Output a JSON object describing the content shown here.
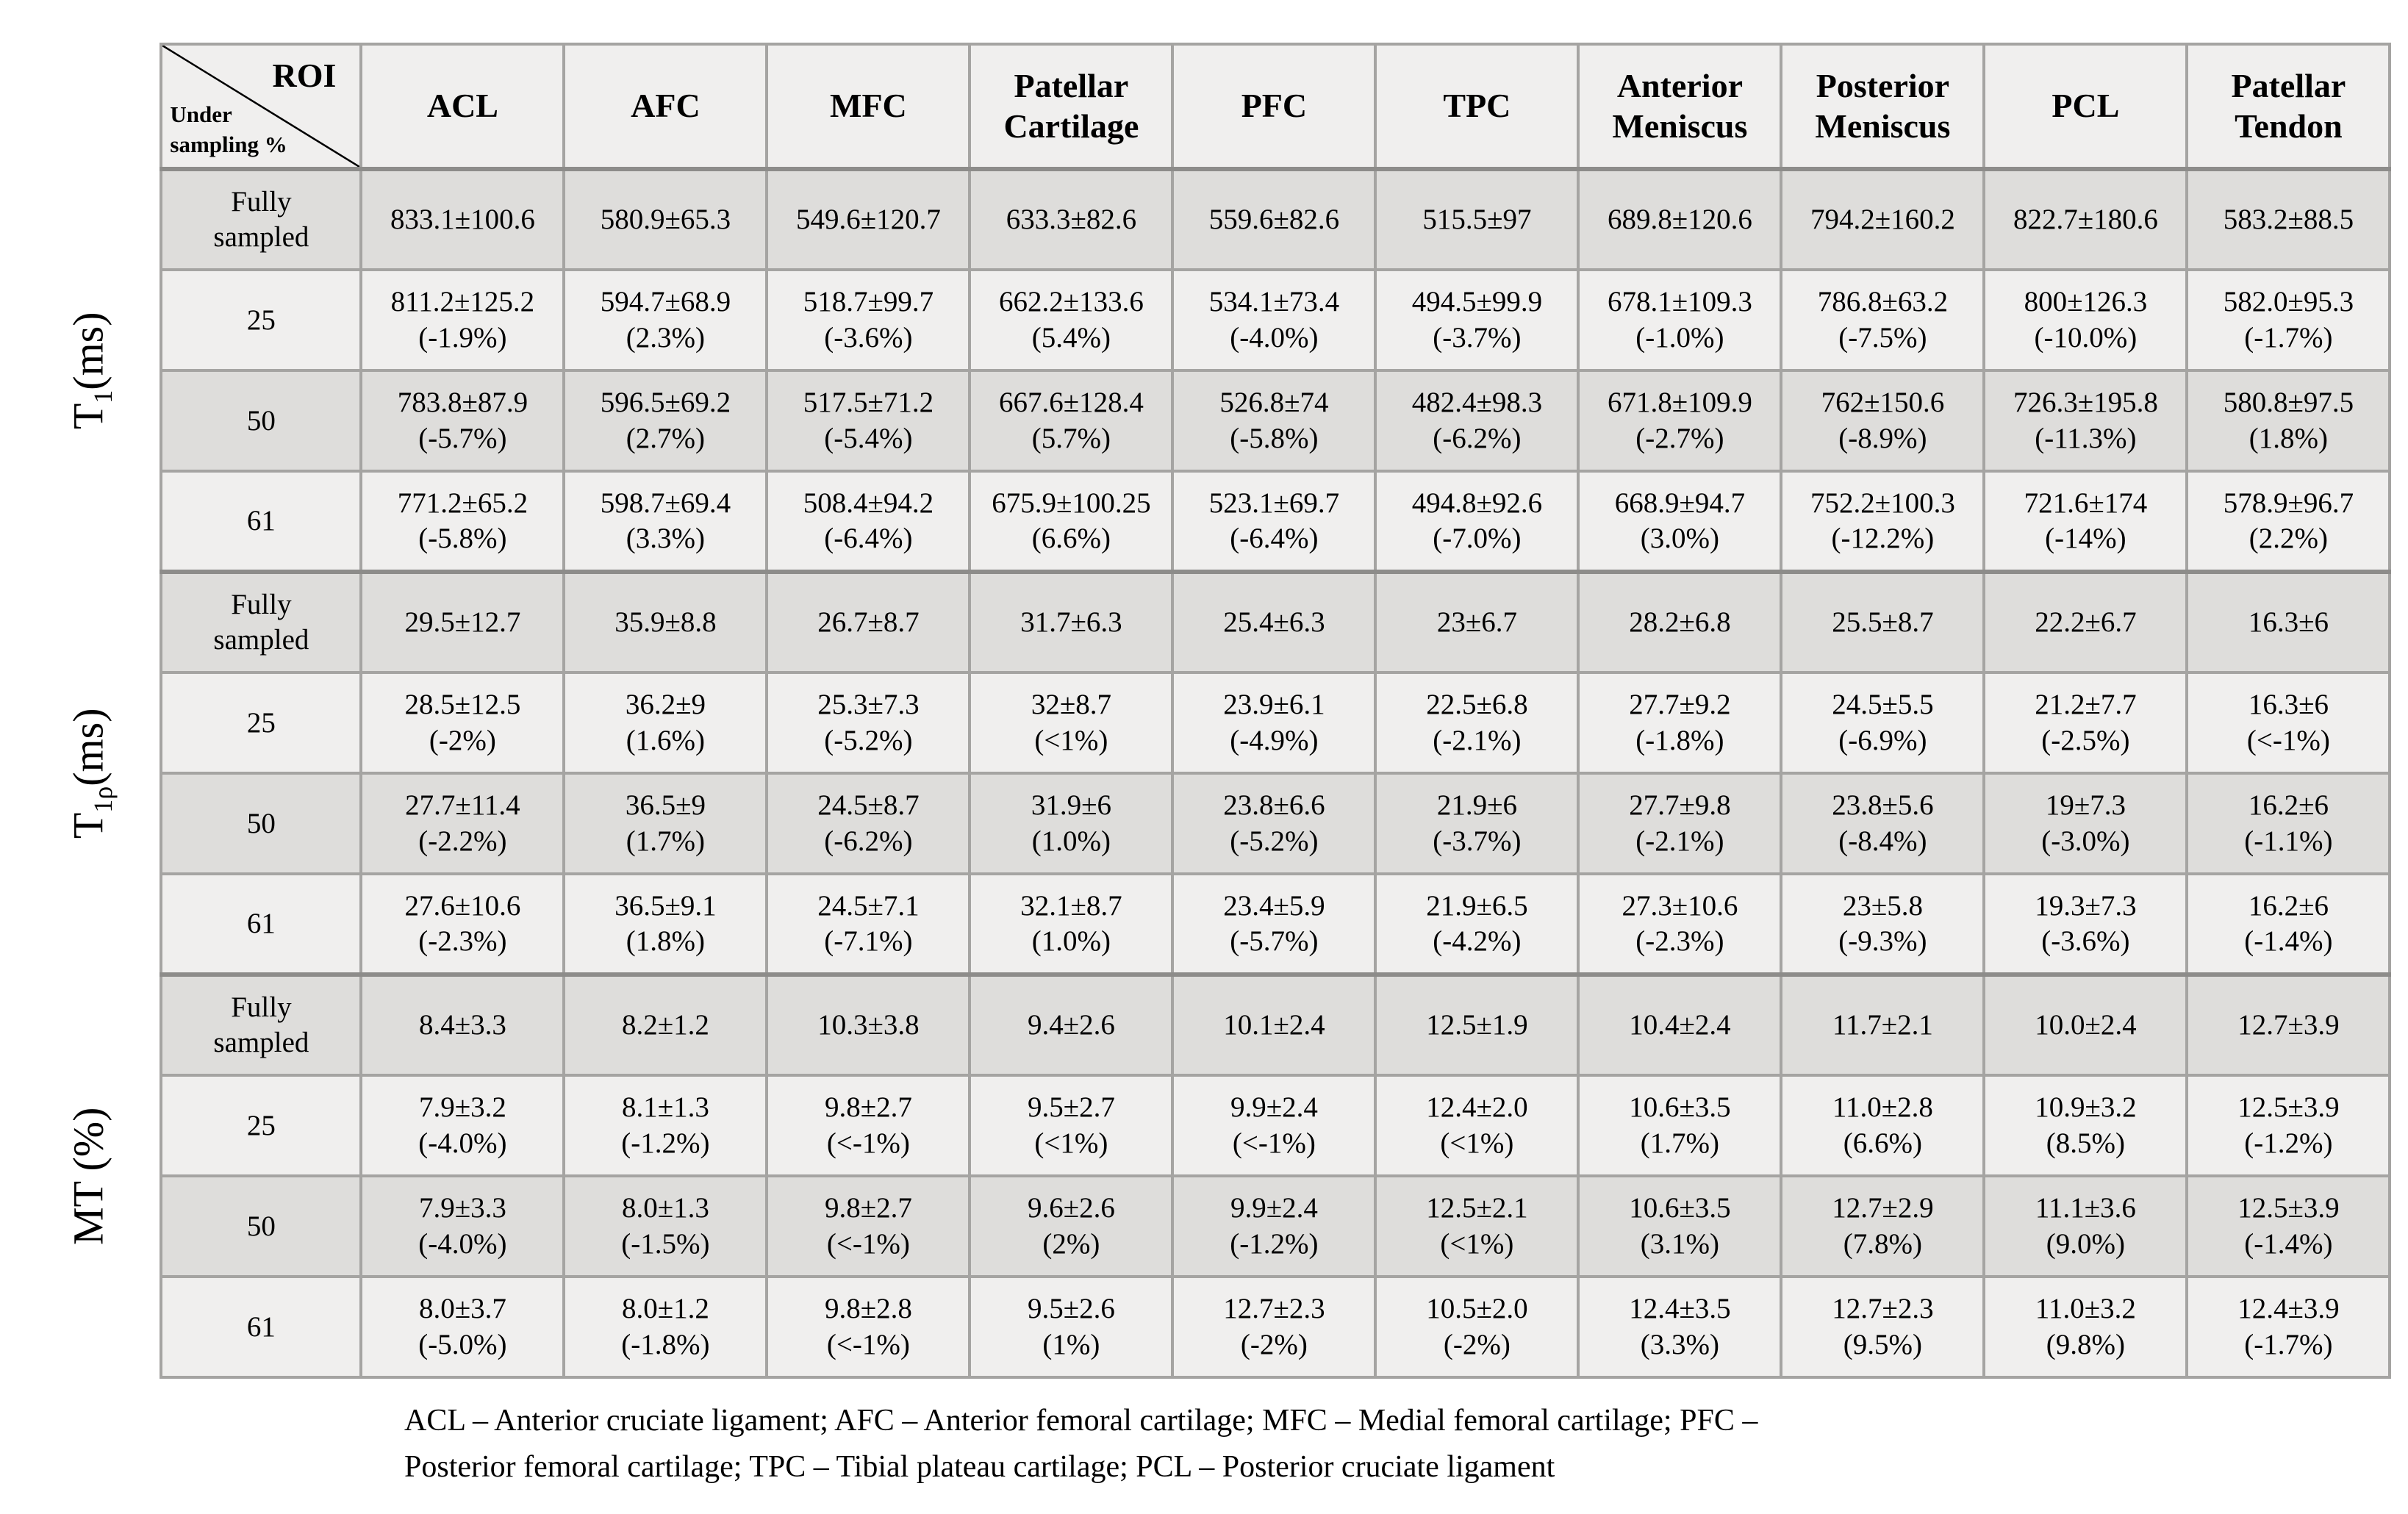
{
  "table": {
    "corner": {
      "roi": "ROI",
      "under_line1": "Under",
      "under_line2": "sampling %"
    },
    "columns": [
      "ACL",
      "AFC",
      "MFC",
      "Patellar Cartilage",
      "PFC",
      "TPC",
      "Anterior Meniscus",
      "Posterior Meniscus",
      "PCL",
      "Patellar Tendon"
    ],
    "groups": [
      {
        "label": {
          "pre": "T",
          "sub": "1",
          "post": "(ms)"
        },
        "rows": [
          {
            "label": "Fully sampled",
            "cells": [
              [
                "833.1±100.6"
              ],
              [
                "580.9±65.3"
              ],
              [
                "549.6±120.7"
              ],
              [
                "633.3±82.6"
              ],
              [
                "559.6±82.6"
              ],
              [
                "515.5±97"
              ],
              [
                "689.8±120.6"
              ],
              [
                "794.2±160.2"
              ],
              [
                "822.7±180.6"
              ],
              [
                "583.2±88.5"
              ]
            ]
          },
          {
            "label": "25",
            "cells": [
              [
                "811.2±125.2",
                "(-1.9%)"
              ],
              [
                "594.7±68.9",
                "(2.3%)"
              ],
              [
                "518.7±99.7",
                "(-3.6%)"
              ],
              [
                "662.2±133.6",
                "(5.4%)"
              ],
              [
                "534.1±73.4",
                "(-4.0%)"
              ],
              [
                "494.5±99.9",
                "(-3.7%)"
              ],
              [
                "678.1±109.3",
                "(-1.0%)"
              ],
              [
                "786.8±63.2",
                "(-7.5%)"
              ],
              [
                "800±126.3",
                "(-10.0%)"
              ],
              [
                "582.0±95.3",
                "(-1.7%)"
              ]
            ]
          },
          {
            "label": "50",
            "cells": [
              [
                "783.8±87.9",
                "(-5.7%)"
              ],
              [
                "596.5±69.2",
                "(2.7%)"
              ],
              [
                "517.5±71.2",
                "(-5.4%)"
              ],
              [
                "667.6±128.4",
                "(5.7%)"
              ],
              [
                "526.8±74",
                "(-5.8%)"
              ],
              [
                "482.4±98.3",
                "(-6.2%)"
              ],
              [
                "671.8±109.9",
                "(-2.7%)"
              ],
              [
                "762±150.6",
                "(-8.9%)"
              ],
              [
                "726.3±195.8",
                "(-11.3%)"
              ],
              [
                "580.8±97.5",
                "(1.8%)"
              ]
            ]
          },
          {
            "label": "61",
            "cells": [
              [
                "771.2±65.2",
                "(-5.8%)"
              ],
              [
                "598.7±69.4",
                "(3.3%)"
              ],
              [
                "508.4±94.2",
                "(-6.4%)"
              ],
              [
                "675.9±100.25",
                "(6.6%)"
              ],
              [
                "523.1±69.7",
                "(-6.4%)"
              ],
              [
                "494.8±92.6",
                "(-7.0%)"
              ],
              [
                "668.9±94.7",
                "(3.0%)"
              ],
              [
                "752.2±100.3",
                "(-12.2%)"
              ],
              [
                "721.6±174",
                "(-14%)"
              ],
              [
                "578.9±96.7",
                "(2.2%)"
              ]
            ]
          }
        ]
      },
      {
        "label": {
          "pre": "T",
          "sub": "1ρ",
          "post": "(ms)"
        },
        "rows": [
          {
            "label": "Fully sampled",
            "cells": [
              [
                "29.5±12.7"
              ],
              [
                "35.9±8.8"
              ],
              [
                "26.7±8.7"
              ],
              [
                "31.7±6.3"
              ],
              [
                "25.4±6.3"
              ],
              [
                "23±6.7"
              ],
              [
                "28.2±6.8"
              ],
              [
                "25.5±8.7"
              ],
              [
                "22.2±6.7"
              ],
              [
                "16.3±6"
              ]
            ]
          },
          {
            "label": "25",
            "cells": [
              [
                "28.5±12.5",
                "(-2%)"
              ],
              [
                "36.2±9",
                "(1.6%)"
              ],
              [
                "25.3±7.3",
                "(-5.2%)"
              ],
              [
                "32±8.7",
                "(<1%)"
              ],
              [
                "23.9±6.1",
                "(-4.9%)"
              ],
              [
                "22.5±6.8",
                "(-2.1%)"
              ],
              [
                "27.7±9.2",
                "(-1.8%)"
              ],
              [
                "24.5±5.5",
                "(-6.9%)"
              ],
              [
                "21.2±7.7",
                "(-2.5%)"
              ],
              [
                "16.3±6",
                "(<-1%)"
              ]
            ]
          },
          {
            "label": "50",
            "cells": [
              [
                "27.7±11.4",
                "(-2.2%)"
              ],
              [
                "36.5±9",
                "(1.7%)"
              ],
              [
                "24.5±8.7",
                "(-6.2%)"
              ],
              [
                "31.9±6",
                "(1.0%)"
              ],
              [
                "23.8±6.6",
                "(-5.2%)"
              ],
              [
                "21.9±6",
                "(-3.7%)"
              ],
              [
                "27.7±9.8",
                "(-2.1%)"
              ],
              [
                "23.8±5.6",
                "(-8.4%)"
              ],
              [
                "19±7.3",
                "(-3.0%)"
              ],
              [
                "16.2±6",
                "(-1.1%)"
              ]
            ]
          },
          {
            "label": "61",
            "cells": [
              [
                "27.6±10.6",
                "(-2.3%)"
              ],
              [
                "36.5±9.1",
                "(1.8%)"
              ],
              [
                "24.5±7.1",
                "(-7.1%)"
              ],
              [
                "32.1±8.7",
                "(1.0%)"
              ],
              [
                "23.4±5.9",
                "(-5.7%)"
              ],
              [
                "21.9±6.5",
                "(-4.2%)"
              ],
              [
                "27.3±10.6",
                "(-2.3%)"
              ],
              [
                "23±5.8",
                "(-9.3%)"
              ],
              [
                "19.3±7.3",
                "(-3.6%)"
              ],
              [
                "16.2±6",
                "(-1.4%)"
              ]
            ]
          }
        ]
      },
      {
        "label": {
          "pre": "MT (%)",
          "sub": "",
          "post": ""
        },
        "rows": [
          {
            "label": "Fully sampled",
            "cells": [
              [
                "8.4±3.3"
              ],
              [
                "8.2±1.2"
              ],
              [
                "10.3±3.8"
              ],
              [
                "9.4±2.6"
              ],
              [
                "10.1±2.4"
              ],
              [
                "12.5±1.9"
              ],
              [
                "10.4±2.4"
              ],
              [
                "11.7±2.1"
              ],
              [
                "10.0±2.4"
              ],
              [
                "12.7±3.9"
              ]
            ]
          },
          {
            "label": "25",
            "cells": [
              [
                "7.9±3.2",
                "(-4.0%)"
              ],
              [
                "8.1±1.3",
                "(-1.2%)"
              ],
              [
                "9.8±2.7",
                "(<-1%)"
              ],
              [
                "9.5±2.7",
                "(<1%)"
              ],
              [
                "9.9±2.4",
                "(<-1%)"
              ],
              [
                "12.4±2.0",
                "(<1%)"
              ],
              [
                "10.6±3.5",
                "(1.7%)"
              ],
              [
                "11.0±2.8",
                "(6.6%)"
              ],
              [
                "10.9±3.2",
                "(8.5%)"
              ],
              [
                "12.5±3.9",
                "(-1.2%)"
              ]
            ]
          },
          {
            "label": "50",
            "cells": [
              [
                "7.9±3.3",
                "(-4.0%)"
              ],
              [
                "8.0±1.3",
                "(-1.5%)"
              ],
              [
                "9.8±2.7",
                "(<-1%)"
              ],
              [
                "9.6±2.6",
                "(2%)"
              ],
              [
                "9.9±2.4",
                "(-1.2%)"
              ],
              [
                "12.5±2.1",
                "(<1%)"
              ],
              [
                "10.6±3.5",
                "(3.1%)"
              ],
              [
                "12.7±2.9",
                "(7.8%)"
              ],
              [
                "11.1±3.6",
                "(9.0%)"
              ],
              [
                "12.5±3.9",
                "(-1.4%)"
              ]
            ]
          },
          {
            "label": "61",
            "cells": [
              [
                "8.0±3.7",
                "(-5.0%)"
              ],
              [
                "8.0±1.2",
                "(-1.8%)"
              ],
              [
                "9.8±2.8",
                "(<-1%)"
              ],
              [
                "9.5±2.6",
                "(1%)"
              ],
              [
                "12.7±2.3",
                "(-2%)"
              ],
              [
                "10.5±2.0",
                "(-2%)"
              ],
              [
                "12.4±3.5",
                "(3.3%)"
              ],
              [
                "12.7±2.3",
                "(9.5%)"
              ],
              [
                "11.0±3.2",
                "(9.8%)"
              ],
              [
                "12.4±3.9",
                "(-1.7%)"
              ]
            ]
          }
        ]
      }
    ]
  },
  "footnote": {
    "line1": "ACL – Anterior cruciate ligament; AFC – Anterior femoral cartilage; MFC – Medial femoral cartilage; PFC –",
    "line2": "Posterior femoral cartilage; TPC – Tibial plateau cartilage; PCL – Posterior cruciate ligament"
  }
}
